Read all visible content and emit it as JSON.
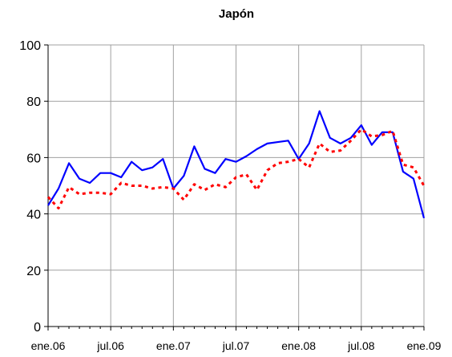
{
  "chart_data": {
    "type": "line",
    "title": "Japón",
    "xlabel": "",
    "ylabel": "",
    "ylim": [
      0,
      100
    ],
    "yticks": [
      0,
      20,
      40,
      60,
      80,
      100
    ],
    "xlim": [
      "2006-01",
      "2009-01"
    ],
    "xticks": [
      "ene.06",
      "jul.06",
      "ene.07",
      "jul.07",
      "ene.08",
      "jul.08",
      "ene.09"
    ],
    "grid": true,
    "legend": "none",
    "x": [
      "2006-01",
      "2006-02",
      "2006-03",
      "2006-04",
      "2006-05",
      "2006-06",
      "2006-07",
      "2006-08",
      "2006-09",
      "2006-10",
      "2006-11",
      "2006-12",
      "2007-01",
      "2007-02",
      "2007-03",
      "2007-04",
      "2007-05",
      "2007-06",
      "2007-07",
      "2007-08",
      "2007-09",
      "2007-10",
      "2007-11",
      "2007-12",
      "2008-01",
      "2008-02",
      "2008-03",
      "2008-04",
      "2008-05",
      "2008-06",
      "2008-07",
      "2008-08",
      "2008-09",
      "2008-10",
      "2008-11",
      "2008-12",
      "2009-01"
    ],
    "series": [
      {
        "color": "#0000ff",
        "style": "solid",
        "values": [
          43,
          49,
          58,
          52.5,
          51,
          54.5,
          54.5,
          53,
          58.5,
          55.5,
          56.5,
          59.5,
          49,
          53.5,
          64,
          56,
          54.5,
          59.5,
          58.5,
          60.5,
          63,
          65,
          65.5,
          66,
          59.5,
          65,
          76.5,
          67,
          65,
          67,
          71.5,
          64.5,
          69,
          69,
          55,
          52.5,
          38.5
        ]
      },
      {
        "color": "#ff0000",
        "style": "dotted",
        "values": [
          46,
          42,
          49.5,
          47,
          47.5,
          47.5,
          47,
          51,
          50,
          50,
          49,
          49.5,
          49,
          45,
          50.5,
          48.5,
          50.5,
          49.5,
          53,
          54,
          48.5,
          55.5,
          58,
          58.5,
          59.5,
          56.5,
          65,
          62,
          62.5,
          66,
          70,
          67.5,
          68,
          69.5,
          57.5,
          56.5,
          50
        ]
      }
    ]
  }
}
